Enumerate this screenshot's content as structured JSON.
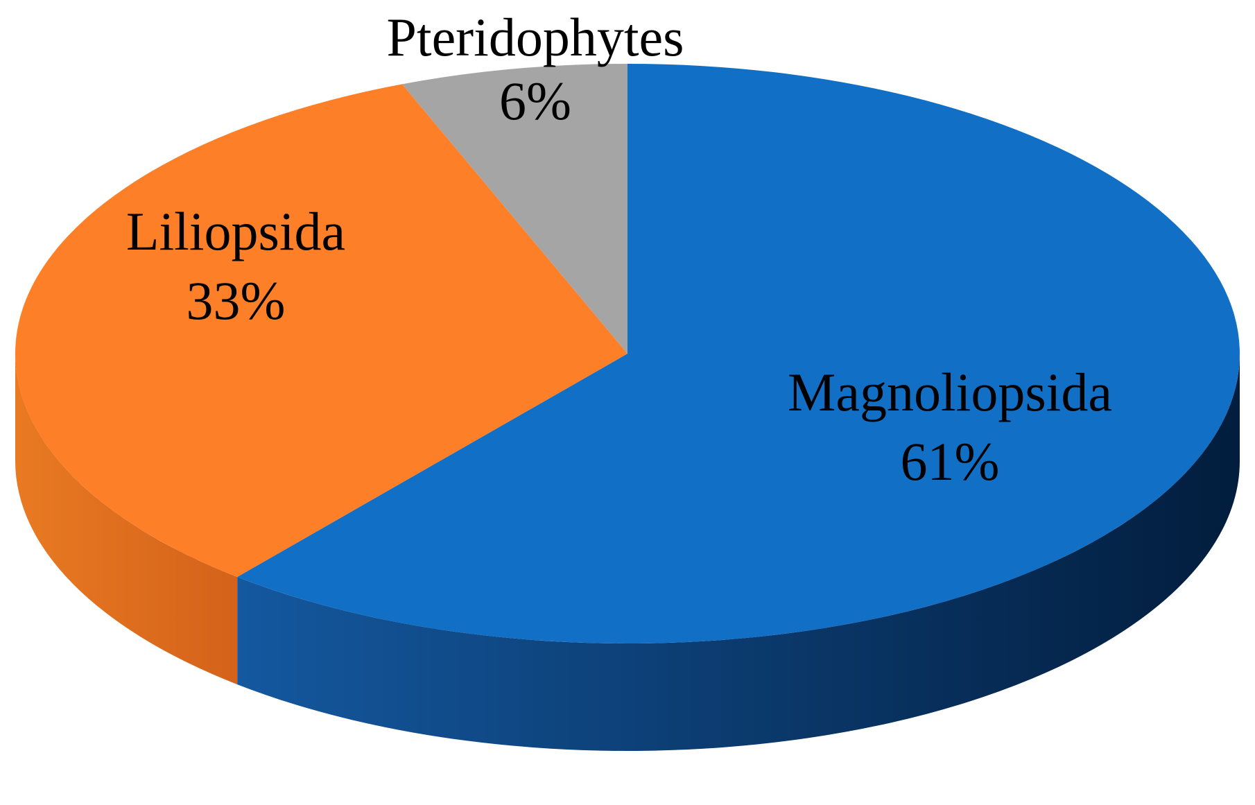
{
  "chart_data": {
    "type": "pie",
    "style": "3d",
    "title": "",
    "categories": [
      "Magnoliopsida",
      "Liliopsida",
      "Pteridophytes"
    ],
    "values": [
      61,
      33,
      6
    ],
    "value_labels": [
      "61%",
      "33%",
      "6%"
    ],
    "colors": [
      "#1170c6",
      "#fd7f28",
      "#a5a5a5"
    ],
    "side_colors": [
      "#0b4a8c",
      "#e06a1c",
      "#7f7f7f"
    ],
    "legend": "none",
    "data_labels": "category and percent"
  }
}
